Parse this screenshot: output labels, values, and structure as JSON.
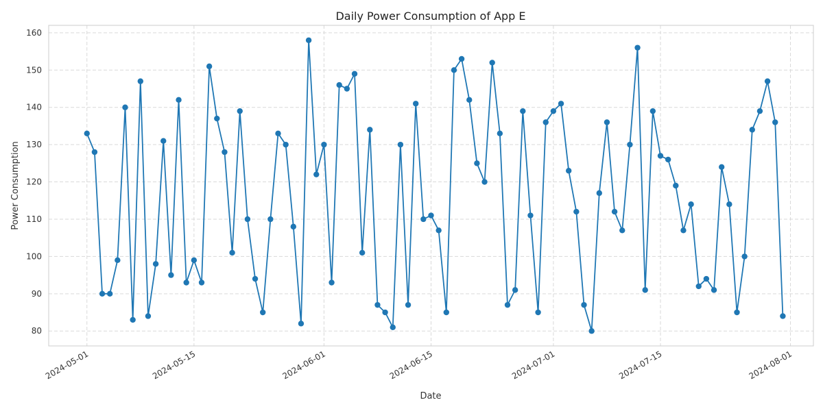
{
  "chart_data": {
    "type": "line",
    "title": "Daily Power Consumption of App E",
    "xlabel": "Date",
    "ylabel": "Power Consumption",
    "x_start": "2024-05-01",
    "x_end": "2024-07-31",
    "xlim": [
      "2024-04-26",
      "2024-08-04"
    ],
    "ylim": [
      76,
      162
    ],
    "x_ticks": [
      "2024-05-01",
      "2024-05-15",
      "2024-06-01",
      "2024-06-15",
      "2024-07-01",
      "2024-07-15",
      "2024-08-01"
    ],
    "y_ticks": [
      80,
      90,
      100,
      110,
      120,
      130,
      140,
      150,
      160
    ],
    "grid": true,
    "marker": "circle",
    "color": "#1f77b4",
    "series": [
      {
        "values": [
          133,
          128,
          90,
          90,
          99,
          140,
          83,
          147,
          84,
          98,
          131,
          95,
          142,
          93,
          99,
          93,
          151,
          137,
          128,
          101,
          139,
          110,
          94,
          85,
          110,
          133,
          130,
          108,
          82,
          158,
          122,
          130,
          93,
          146,
          145,
          149,
          101,
          134,
          87,
          85,
          81,
          130,
          87,
          141,
          110,
          111,
          107,
          85,
          150,
          153,
          142,
          125,
          120,
          152,
          133,
          87,
          91,
          139,
          111,
          85,
          136,
          139,
          141,
          123,
          112,
          87,
          80,
          117,
          136,
          112,
          107,
          130,
          156,
          91,
          139,
          127,
          126,
          119,
          107,
          114,
          92,
          94,
          91,
          124,
          114,
          85,
          100,
          134,
          139,
          147,
          136,
          84
        ]
      }
    ]
  }
}
